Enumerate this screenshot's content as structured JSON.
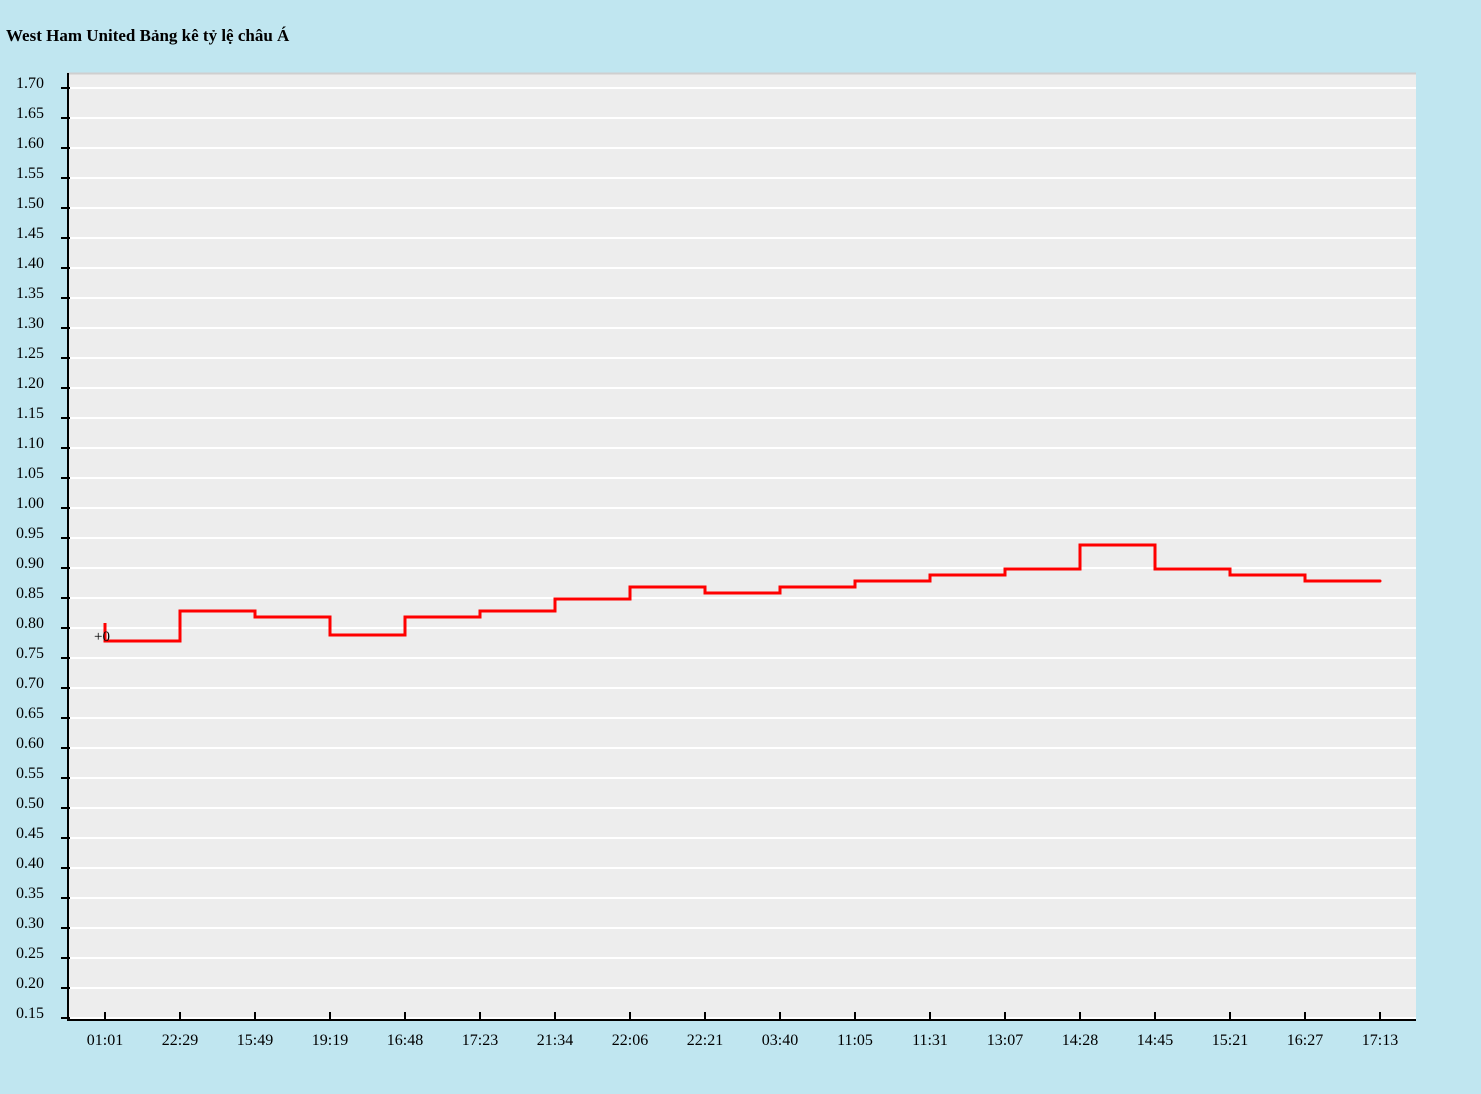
{
  "chart_data": {
    "type": "line",
    "title": "West Ham United Bảng kê tỷ lệ châu Á",
    "x": [
      "01:01",
      "22:29",
      "15:49",
      "19:19",
      "16:48",
      "17:23",
      "21:34",
      "22:06",
      "22:21",
      "03:40",
      "11:05",
      "11:31",
      "13:07",
      "14:28",
      "14:45",
      "15:21",
      "16:27",
      "17:13"
    ],
    "series": [
      {
        "values": [
          0.77,
          0.82,
          0.81,
          0.78,
          0.81,
          0.82,
          0.84,
          0.86,
          0.85,
          0.86,
          0.87,
          0.88,
          0.89,
          0.93,
          0.89,
          0.88,
          0.87,
          0.87
        ],
        "initial_value": 0.8,
        "color": "#ff0000",
        "step": true
      }
    ],
    "annotations": [
      {
        "text": "+0",
        "x": "01:01",
        "y": 0.78
      }
    ],
    "ylim": [
      0.15,
      1.7
    ],
    "y_ticks": [
      "0.15",
      "0.20",
      "0.25",
      "0.30",
      "0.35",
      "0.40",
      "0.45",
      "0.50",
      "0.55",
      "0.60",
      "0.65",
      "0.70",
      "0.75",
      "0.80",
      "0.85",
      "0.90",
      "0.95",
      "1.00",
      "1.05",
      "1.10",
      "1.15",
      "1.20",
      "1.25",
      "1.30",
      "1.35",
      "1.40",
      "1.45",
      "1.50",
      "1.55",
      "1.60",
      "1.65",
      "1.70"
    ],
    "grid": true,
    "plot_background": "#ededed",
    "page_background": "#c0e6f0",
    "grid_color": "#ffffff",
    "xlabel": "",
    "ylabel": ""
  }
}
